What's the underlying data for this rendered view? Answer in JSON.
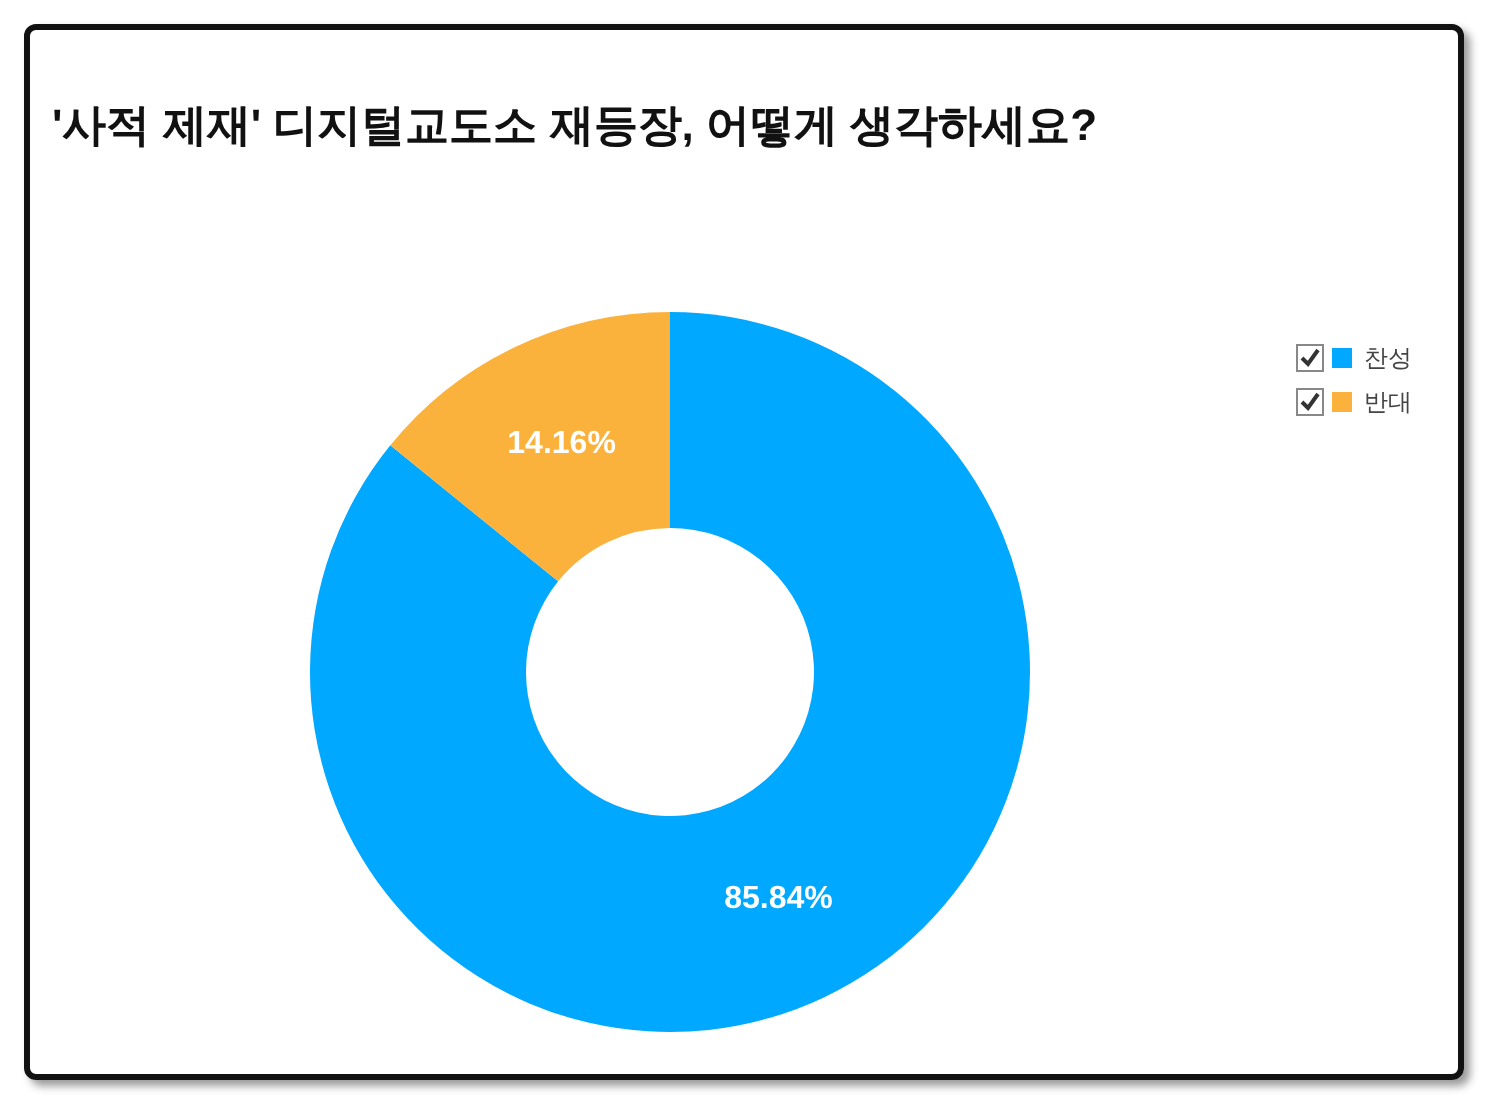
{
  "chart_data": {
    "type": "donut",
    "title": "'사적 제재' 디지털교도소 재등장, 어떻게 생각하세요?",
    "categories": [
      "찬성",
      "반대"
    ],
    "values": [
      85.84,
      14.16
    ],
    "colors": [
      "#00a8ff",
      "#fbb23c"
    ],
    "value_labels": [
      "85.84%",
      "14.16%"
    ],
    "legend": "right"
  }
}
